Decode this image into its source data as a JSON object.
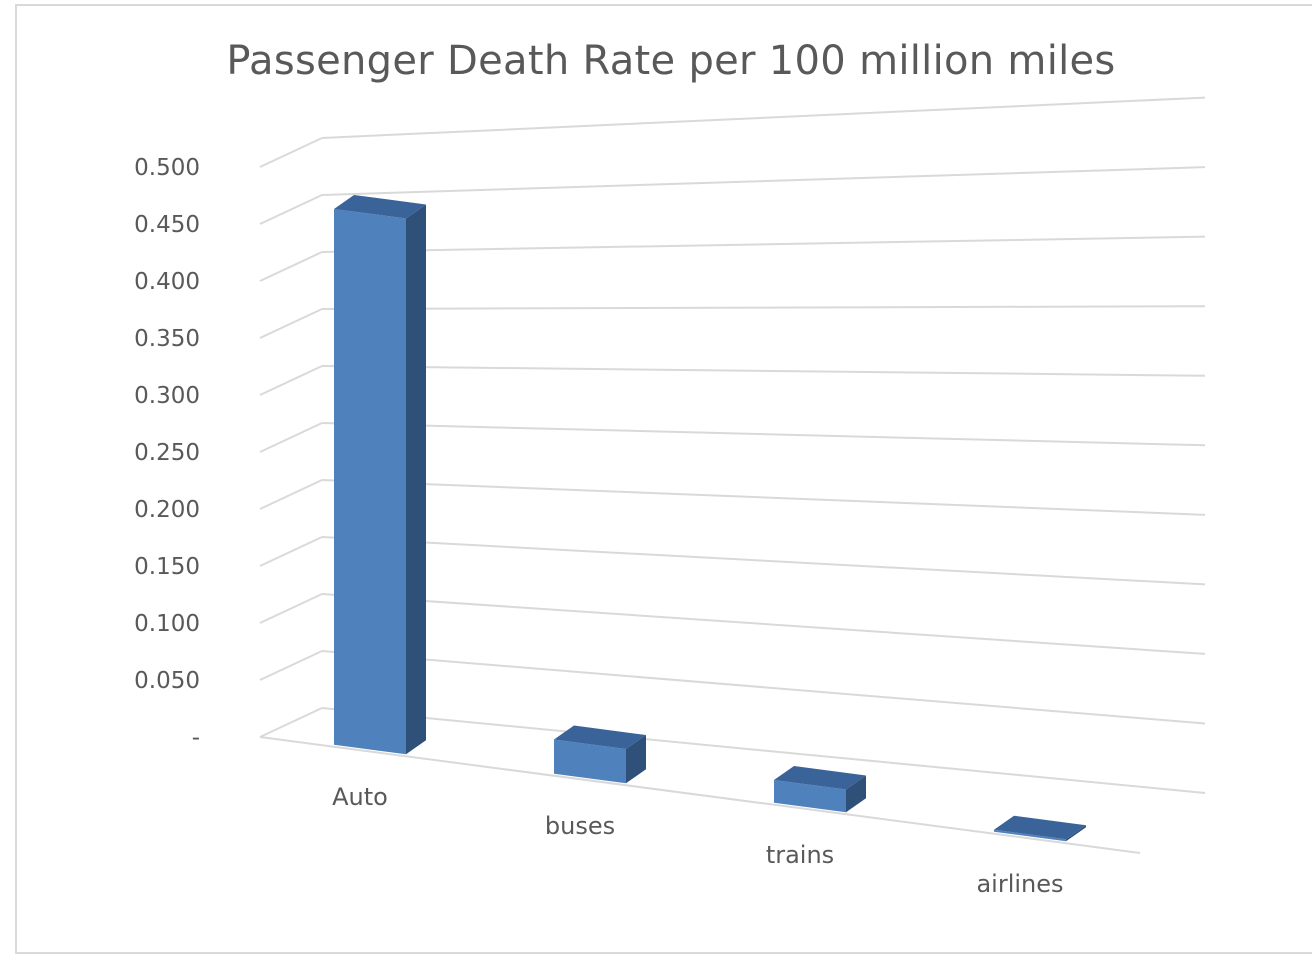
{
  "chart_data": {
    "type": "bar",
    "style": "3d-column",
    "title": "Passenger Death Rate per 100 million miles",
    "categories": [
      "Auto",
      "buses",
      "trains",
      "airlines"
    ],
    "values": [
      0.47,
      0.03,
      0.02,
      0.001
    ],
    "ylim": [
      0,
      0.5
    ],
    "yticks": [
      "-",
      "0.050",
      "0.100",
      "0.150",
      "0.200",
      "0.250",
      "0.300",
      "0.350",
      "0.400",
      "0.450",
      "0.500"
    ],
    "xlabel": "",
    "ylabel": "",
    "grid": true,
    "legend": "none",
    "colors": {
      "front": "#4f81bd",
      "side": "#2f5078",
      "top": "#3a6399",
      "grid": "#d9d9d9",
      "text": "#595959"
    }
  }
}
